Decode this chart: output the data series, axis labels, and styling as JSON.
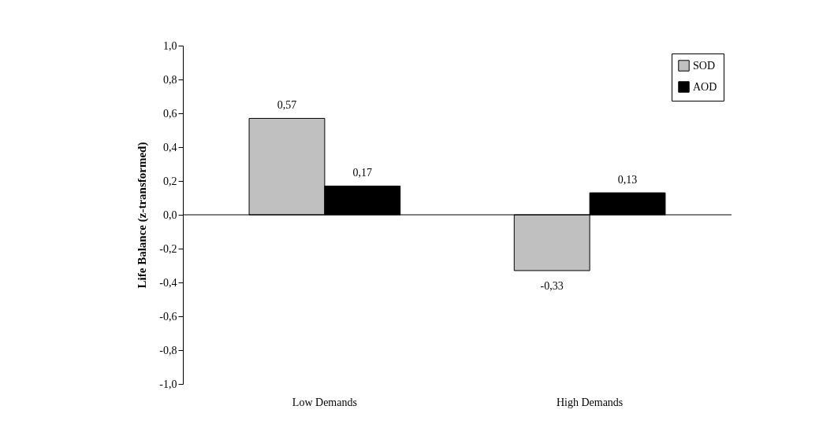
{
  "chart_data": {
    "type": "bar",
    "ylabel": "Life Balance (z-transformed)",
    "categories": [
      "Low Demands",
      "High Demands"
    ],
    "series": [
      {
        "name": "SOD",
        "color": "#c0c0c0",
        "values": [
          0.57,
          -0.33
        ],
        "value_labels": [
          "0,57",
          "-0,33"
        ]
      },
      {
        "name": "AOD",
        "color": "#000000",
        "values": [
          0.17,
          0.13
        ],
        "value_labels": [
          "0,17",
          "0,13"
        ]
      }
    ],
    "ylim": [
      -1,
      1
    ],
    "yticks": [
      {
        "value": -1,
        "label": "-1,0"
      },
      {
        "value": -0.8,
        "label": "-0,8"
      },
      {
        "value": -0.6,
        "label": "-0,6"
      },
      {
        "value": -0.4,
        "label": "-0,4"
      },
      {
        "value": -0.2,
        "label": "-0,2"
      },
      {
        "value": 0,
        "label": "0,0"
      },
      {
        "value": 0.2,
        "label": "0,2"
      },
      {
        "value": 0.4,
        "label": "0,4"
      },
      {
        "value": 0.6,
        "label": "0,6"
      },
      {
        "value": 0.8,
        "label": "0,8"
      },
      {
        "value": 1,
        "label": "1,0"
      }
    ],
    "ref_lines": [
      {
        "axis": "y",
        "value": 0
      }
    ],
    "legend": "top right",
    "grid": false
  }
}
